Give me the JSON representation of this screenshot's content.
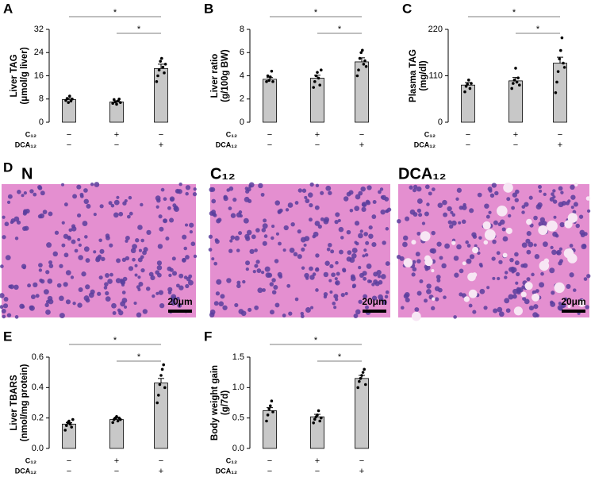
{
  "chart_data": [
    {
      "type": "bar",
      "panel": "A",
      "ylabel": [
        "Liver TAG",
        "(μmol/g liver)"
      ],
      "ylim": [
        0,
        32
      ],
      "yticks": [
        0,
        8,
        16,
        24,
        32
      ],
      "values": [
        7.8,
        7.0,
        18.5
      ],
      "errors": [
        0.5,
        0.4,
        1.5
      ],
      "color": "#c8c8c8",
      "points": [
        [
          7.5,
          8.2,
          6.8,
          9.0,
          7.3,
          8.0
        ],
        [
          6.5,
          7.8,
          7.0,
          6.2,
          7.3,
          8.0,
          6.8
        ],
        [
          14,
          16,
          18,
          21,
          22,
          19,
          17,
          20
        ]
      ],
      "significance": [
        {
          "label": "*",
          "pair": [
            0,
            2
          ]
        },
        {
          "label": "*",
          "pair": [
            1,
            2
          ]
        }
      ],
      "treatments": [
        {
          "name": "C₁₂",
          "marks": [
            "−",
            "+",
            "−"
          ]
        },
        {
          "name": "DCA₁₂",
          "marks": [
            "−",
            "−",
            "+"
          ]
        }
      ]
    },
    {
      "type": "bar",
      "panel": "B",
      "ylabel": [
        "Liver ratio",
        "(g/100g BW)"
      ],
      "ylim": [
        0,
        8
      ],
      "yticks": [
        0,
        2,
        4,
        6,
        8
      ],
      "values": [
        3.7,
        3.8,
        5.2
      ],
      "errors": [
        0.15,
        0.25,
        0.35
      ],
      "color": "#c8c8c8",
      "points": [
        [
          3.5,
          4.0,
          3.6,
          3.9,
          4.4,
          3.5
        ],
        [
          3.0,
          3.5,
          4.0,
          4.3,
          3.8,
          3.2,
          4.5
        ],
        [
          4.0,
          4.5,
          5.5,
          6.0,
          6.2,
          5.0,
          5.3,
          4.8
        ]
      ],
      "significance": [
        {
          "label": "*",
          "pair": [
            0,
            2
          ]
        },
        {
          "label": "*",
          "pair": [
            1,
            2
          ]
        }
      ],
      "treatments": [
        {
          "name": "C₁₂",
          "marks": [
            "−",
            "+",
            "−"
          ]
        },
        {
          "name": "DCA₁₂",
          "marks": [
            "−",
            "−",
            "+"
          ]
        }
      ]
    },
    {
      "type": "bar",
      "panel": "C",
      "ylabel": [
        "Plasma TAG",
        "(mg/dl)"
      ],
      "ylim": [
        0,
        220
      ],
      "yticks": [
        0,
        110,
        220
      ],
      "values": [
        88,
        98,
        140
      ],
      "errors": [
        6,
        8,
        14
      ],
      "color": "#c8c8c8",
      "points": [
        [
          72,
          85,
          90,
          100,
          80,
          92
        ],
        [
          80,
          92,
          100,
          128,
          95,
          105,
          88
        ],
        [
          70,
          95,
          120,
          150,
          170,
          200,
          140,
          130
        ]
      ],
      "significance": [
        {
          "label": "*",
          "pair": [
            0,
            2
          ]
        },
        {
          "label": "*",
          "pair": [
            1,
            2
          ]
        }
      ],
      "treatments": [
        {
          "name": "C₁₂",
          "marks": [
            "−",
            "+",
            "−"
          ]
        },
        {
          "name": "DCA₁₂",
          "marks": [
            "−",
            "−",
            "+"
          ]
        }
      ]
    },
    {
      "type": "bar",
      "panel": "E",
      "ylabel": [
        "Liver TBARS",
        "(nmol/mg protein)"
      ],
      "ylim": [
        0,
        0.6
      ],
      "yticks": [
        {
          "value": 0,
          "label": "0.0"
        },
        0.2,
        0.4,
        0.6
      ],
      "values": [
        0.16,
        0.19,
        0.43
      ],
      "errors": [
        0.01,
        0.01,
        0.03
      ],
      "color": "#c8c8c8",
      "points": [
        [
          0.12,
          0.15,
          0.17,
          0.18,
          0.16,
          0.14,
          0.19
        ],
        [
          0.17,
          0.19,
          0.2,
          0.21,
          0.18,
          0.2,
          0.19
        ],
        [
          0.3,
          0.35,
          0.42,
          0.48,
          0.52,
          0.55,
          0.4
        ]
      ],
      "significance": [
        {
          "label": "*",
          "pair": [
            0,
            2
          ]
        },
        {
          "label": "*",
          "pair": [
            1,
            2
          ]
        }
      ],
      "treatments": [
        {
          "name": "C₁₂",
          "marks": [
            "−",
            "+",
            "−"
          ]
        },
        {
          "name": "DCA₁₂",
          "marks": [
            "−",
            "−",
            "+"
          ]
        }
      ]
    },
    {
      "type": "bar",
      "panel": "F",
      "ylabel": [
        "Body weight gain",
        "(g/7d)"
      ],
      "ylim": [
        0,
        1.5
      ],
      "yticks": [
        {
          "value": 0,
          "label": "0.0"
        },
        0.5,
        {
          "value": 1,
          "label": "1.0"
        },
        1.5
      ],
      "values": [
        0.62,
        0.52,
        1.15
      ],
      "errors": [
        0.05,
        0.04,
        0.05
      ],
      "color": "#c8c8c8",
      "points": [
        [
          0.45,
          0.55,
          0.65,
          0.7,
          0.78,
          0.6
        ],
        [
          0.42,
          0.48,
          0.52,
          0.55,
          0.62,
          0.45,
          0.5
        ],
        [
          1.0,
          1.1,
          1.15,
          1.2,
          1.25,
          1.3,
          1.05
        ]
      ],
      "significance": [
        {
          "label": "*",
          "pair": [
            0,
            2
          ]
        },
        {
          "label": "*",
          "pair": [
            1,
            2
          ]
        }
      ],
      "treatments": [
        {
          "name": "C₁₂",
          "marks": [
            "−",
            "+",
            "−"
          ]
        },
        {
          "name": "DCA₁₂",
          "marks": [
            "−",
            "−",
            "+"
          ]
        }
      ]
    }
  ],
  "histology": {
    "panel": "D",
    "images": [
      {
        "label": "N",
        "scale": "20μm"
      },
      {
        "label": "C₁₂",
        "scale": "20μm"
      },
      {
        "label": "DCA₁₂",
        "scale": "20μm"
      }
    ]
  }
}
